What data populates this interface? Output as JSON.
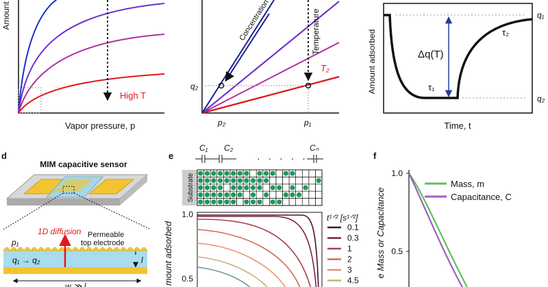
{
  "panel_a": {
    "y_label": "Amount",
    "annotation": "High T",
    "x_label": "Vapor pressure, p"
  },
  "panel_b": {
    "arrow_concentration": "Concentration s",
    "arrow_temperature": "Temperature",
    "curve_label": "T₂",
    "q_label": "q₂",
    "p_low": "p₂",
    "p_high": "p₁"
  },
  "panel_c": {
    "y_label": "Amount adsorbed",
    "x_label": "Time, t",
    "delta": "Δq(T)",
    "tau_1": "τ₁",
    "tau_2": "τ₂",
    "q_top": "q₁",
    "q_bottom": "q₂"
  },
  "panel_d": {
    "letter": "d",
    "title": "MIM capacitive sensor",
    "diffusion": "1D diffusion",
    "electrode_1": "Permeable",
    "electrode_2": "top electrode",
    "pressure": "p₁",
    "transition": "q₁ → q₂",
    "thickness": "l",
    "width": "w ≫ l"
  },
  "panel_e": {
    "letter": "e",
    "caps": [
      "C₁",
      "C₂",
      "Cₙ"
    ],
    "substrate": "Substrate",
    "y_label": "mount adsorbed",
    "yticks": [
      "1.0",
      "0.5"
    ],
    "legend_title": "t¹ᐟ² [s¹ᐟ²]",
    "legend": [
      {
        "name": "0.1",
        "color": "#4a1030"
      },
      {
        "name": "0.3",
        "color": "#7a2040"
      },
      {
        "name": "1",
        "color": "#a8404e"
      },
      {
        "name": "2",
        "color": "#d06a58"
      },
      {
        "name": "3",
        "color": "#e8946c"
      },
      {
        "name": "4.5",
        "color": "#c8b07c"
      }
    ]
  },
  "panel_f": {
    "letter": "f",
    "yticks": [
      "1.0",
      "0.5"
    ],
    "y_label": "e Mass or Capacitance",
    "legend": [
      {
        "name": "Mass, m",
        "color": "#5cc25a"
      },
      {
        "name": "Capacitance, C",
        "color": "#a45cc0"
      }
    ]
  }
}
